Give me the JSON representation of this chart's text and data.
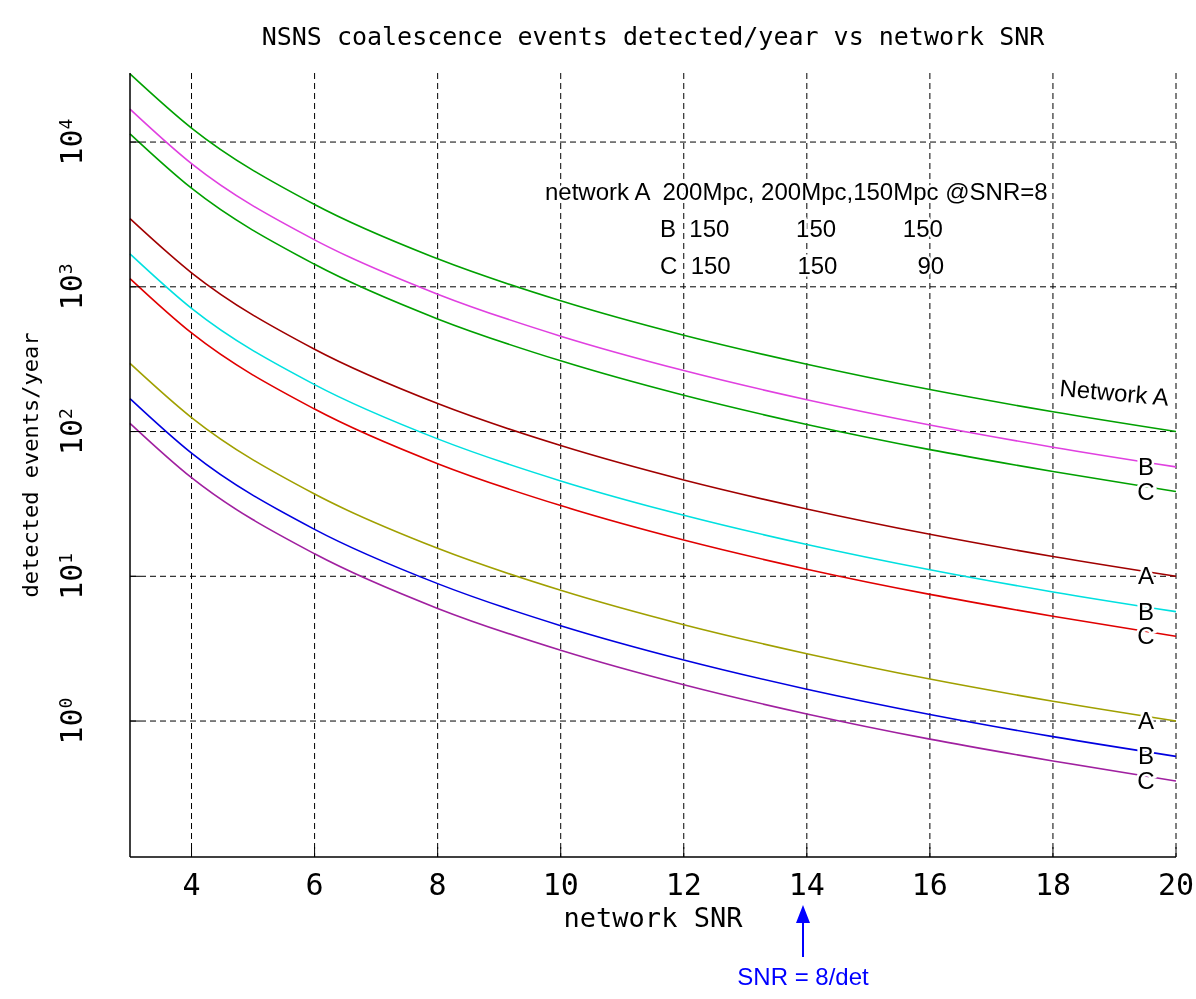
{
  "chart_data": {
    "type": "line",
    "title": "NSNS coalescence events detected/year vs network SNR",
    "xlabel": "network SNR",
    "ylabel": "detected events/year",
    "x": [
      3,
      4,
      6,
      8,
      10,
      12,
      14,
      16,
      18,
      20
    ],
    "series": [
      {
        "name": "Network A",
        "color": "#00a000",
        "values": [
          29600,
          12500,
          3700,
          1560,
          800,
          463,
          292,
          195,
          137,
          100
        ]
      },
      {
        "name": "B",
        "color": "#e040e0",
        "values": [
          16900,
          7100,
          2110,
          890,
          456,
          264,
          166,
          111,
          78,
          57
        ]
      },
      {
        "name": "C",
        "color": "#00a000",
        "values": [
          11400,
          4800,
          1430,
          600,
          308,
          178,
          112,
          75,
          53,
          38.5
        ]
      },
      {
        "name": "A",
        "color": "#a00000",
        "values": [
          2960,
          1250,
          370,
          156,
          80,
          46.3,
          29.2,
          19.5,
          13.7,
          10
        ]
      },
      {
        "name": "B",
        "color": "#00e0e0",
        "values": [
          1690,
          710,
          211,
          89,
          45.6,
          26.4,
          16.6,
          11.1,
          7.8,
          5.7
        ]
      },
      {
        "name": "C",
        "color": "#e00000",
        "values": [
          1140,
          480,
          143,
          60,
          30.8,
          17.8,
          11.2,
          7.5,
          5.3,
          3.85
        ]
      },
      {
        "name": "A",
        "color": "#a0a000",
        "values": [
          296,
          125,
          37,
          15.6,
          8,
          4.63,
          2.92,
          1.95,
          1.37,
          1
        ]
      },
      {
        "name": "B",
        "color": "#0000e0",
        "values": [
          169,
          71,
          21.1,
          8.9,
          4.56,
          2.64,
          1.66,
          1.11,
          0.78,
          0.57
        ]
      },
      {
        "name": "C",
        "color": "#a020a0",
        "values": [
          114,
          48,
          14.3,
          6,
          3.08,
          1.78,
          1.12,
          0.75,
          0.53,
          0.385
        ]
      }
    ],
    "log": "y",
    "xlim": [
      3,
      20
    ],
    "xticks": [
      4,
      6,
      8,
      10,
      12,
      14,
      16,
      18,
      20
    ],
    "ylim": [
      0.115,
      30000
    ],
    "yticks": [
      {
        "value": 1,
        "label": "10$^{0}$"
      },
      {
        "value": 10,
        "label": "10$^{1}$"
      },
      {
        "value": 100,
        "label": "10$^{2}$"
      },
      {
        "value": 1000,
        "label": "10$^{3}$"
      },
      {
        "value": 10000,
        "label": "10$^{4}$"
      }
    ],
    "grid": true,
    "line_style": "solid",
    "marker": "none",
    "annotations": [
      "network A  200Mpc, 200Mpc,150Mpc @SNR=8",
      "B  150          150          150",
      "C  150          150            90",
      "SNR = 8/det"
    ]
  }
}
